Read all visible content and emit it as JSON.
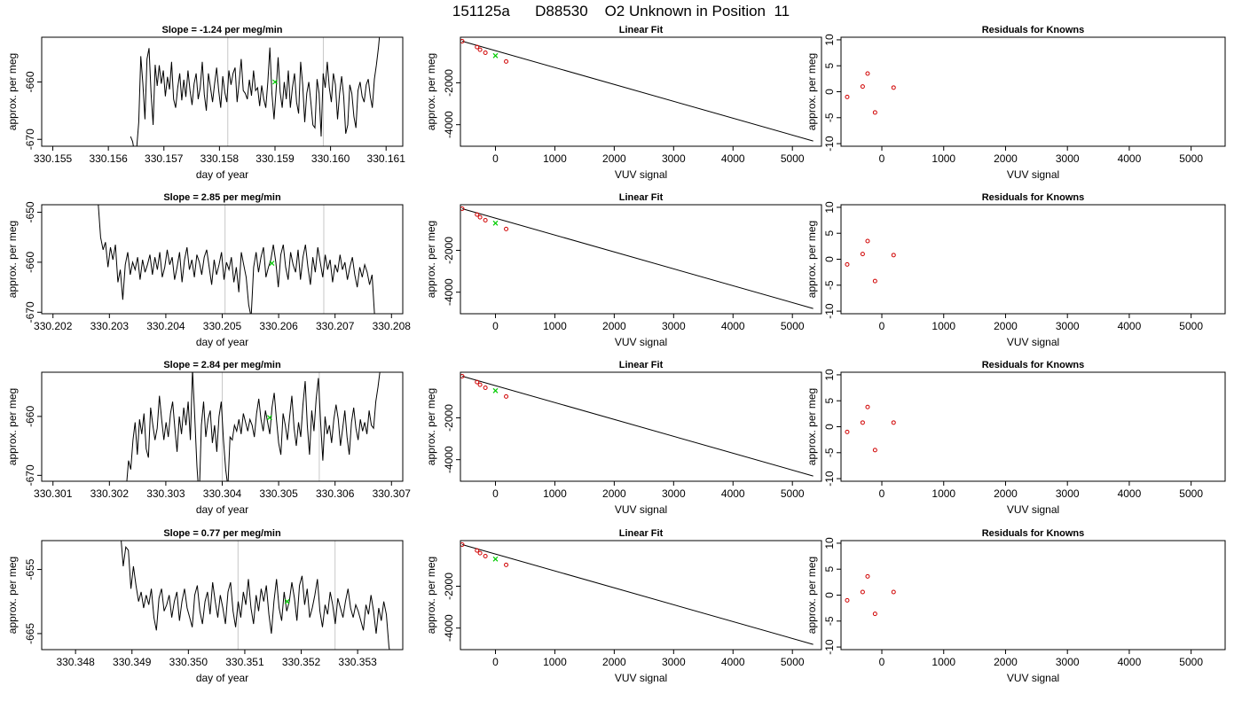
{
  "page": {
    "title": "151125a      D88530    O2 Unknown in Position  11"
  },
  "chart_data": [
    {
      "type": "line",
      "panel": "time",
      "title": "Slope =  -1.24  per meg/min",
      "xlabel": "day of year",
      "ylabel": "approx. per meg",
      "xlim": [
        330.1548,
        330.1613
      ],
      "ylim": [
        -671.2,
        -652.2
      ],
      "xticks": [
        "330.155",
        "330.156",
        "330.157",
        "330.158",
        "330.159",
        "330.160",
        "330.161"
      ],
      "yticks": [
        "-670",
        "-660"
      ],
      "vlines": [
        330.15815,
        330.15987
      ],
      "marker": {
        "x": 330.159,
        "y": -660.0,
        "color": "#00cc00"
      },
      "series_x_range": [
        330.1564,
        330.1609
      ],
      "values": [
        -669.5,
        -670.4,
        -672.5,
        -671.5,
        -667.0,
        -655.5,
        -660.2,
        -666.5,
        -656.0,
        -654.1,
        -662.0,
        -667.5,
        -657.0,
        -660.7,
        -657.1,
        -660.3,
        -658.0,
        -662.5,
        -659.1,
        -661.3,
        -656.5,
        -663.0,
        -664.5,
        -661.0,
        -658.5,
        -663.2,
        -659.6,
        -662.6,
        -658.0,
        -661.5,
        -664.0,
        -660.3,
        -658.5,
        -663.0,
        -661.0,
        -656.5,
        -662.2,
        -665.0,
        -658.5,
        -661.0,
        -663.5,
        -660.3,
        -657.5,
        -661.5,
        -664.5,
        -659.0,
        -661.8,
        -663.5,
        -658.0,
        -660.5,
        -658.5,
        -657.5,
        -663.5,
        -660.0,
        -656.0,
        -661.5,
        -662.0,
        -663.0,
        -659.6,
        -662.4,
        -658.0,
        -661.5,
        -661.0,
        -664.2,
        -660.6,
        -663.0,
        -664.5,
        -660.0,
        -654.0,
        -662.0,
        -666.5,
        -661.5,
        -655.7,
        -661.8,
        -664.5,
        -660.0,
        -663.0,
        -658.0,
        -664.5,
        -661.0,
        -658.5,
        -663.5,
        -665.5,
        -656.5,
        -660.5,
        -667.0,
        -662.0,
        -660.0,
        -663.5,
        -667.5,
        -668.0,
        -659.5,
        -662.0,
        -669.5,
        -658.5,
        -661.0,
        -656.5,
        -661.0,
        -663.5,
        -658.5,
        -660.5,
        -666.5,
        -662.0,
        -659.0,
        -662.5,
        -669.0,
        -667.5,
        -660.5,
        -662.0,
        -666.0,
        -668.0,
        -661.5,
        -660.0,
        -662.5,
        -663.5,
        -660.5,
        -659.5,
        -662.5,
        -664.5,
        -659.5,
        -657.0,
        -654.0,
        -650.0
      ],
      "grid": false
    },
    {
      "type": "scatter",
      "panel": "fit",
      "title": "Linear Fit",
      "xlabel": "VUV signal",
      "ylabel": "approx. per meg",
      "xlim": [
        -590,
        5490
      ],
      "ylim": [
        -5030,
        180
      ],
      "xticks": [
        0,
        1000,
        2000,
        3000,
        4000,
        5000
      ],
      "yticks": [
        -4000,
        -2000
      ],
      "points_x": [
        -560,
        -310,
        -260,
        -170,
        180
      ],
      "points_y": [
        -10,
        -290,
        -420,
        -560,
        -980
      ],
      "unknown_x": 0,
      "unknown_y": -700,
      "fit_line": {
        "x": [
          -560,
          5350
        ],
        "y": [
          -10,
          -4780
        ]
      },
      "grid": false
    },
    {
      "type": "scatter",
      "panel": "residuals",
      "title": "Residuals for Knowns",
      "xlabel": "VUV signal",
      "ylabel": "approx. per meg",
      "xlim": [
        -660,
        5550
      ],
      "ylim": [
        -10.5,
        10.5
      ],
      "xticks": [
        0,
        1000,
        2000,
        3000,
        4000,
        5000
      ],
      "yticks": [
        -10,
        -5,
        0,
        5,
        10
      ],
      "x": [
        -560,
        -310,
        -230,
        -110,
        190
      ],
      "y": [
        -1.0,
        1.0,
        3.5,
        -4.0,
        0.8
      ],
      "grid": false
    },
    {
      "type": "line",
      "panel": "time",
      "title": "Slope =  2.85  per meg/min",
      "xlabel": "day of year",
      "ylabel": "approx. per meg",
      "xlim": [
        330.2018,
        330.2082
      ],
      "ylim": [
        -670.3,
        -648.5
      ],
      "xticks": [
        "330.202",
        "330.203",
        "330.204",
        "330.205",
        "330.206",
        "330.207",
        "330.208"
      ],
      "yticks": [
        "-670",
        "-660",
        "-650"
      ],
      "vlines": [
        330.20505,
        330.2068
      ],
      "marker": {
        "x": 330.20588,
        "y": -660.2,
        "color": "#00cc00"
      },
      "series_x_range": [
        330.2028,
        330.2077
      ],
      "values": [
        -648.0,
        -655.0,
        -657.5,
        -656.0,
        -661.0,
        -657.0,
        -659.5,
        -656.5,
        -664.0,
        -661.5,
        -667.5,
        -660.5,
        -658.0,
        -662.5,
        -660.0,
        -661.5,
        -659.0,
        -663.5,
        -659.5,
        -662.0,
        -660.5,
        -658.5,
        -662.5,
        -659.0,
        -661.5,
        -658.0,
        -663.0,
        -661.0,
        -657.5,
        -660.5,
        -659.0,
        -663.5,
        -661.0,
        -658.0,
        -664.0,
        -659.5,
        -657.0,
        -661.5,
        -659.5,
        -663.0,
        -658.5,
        -660.0,
        -662.5,
        -659.0,
        -657.5,
        -661.0,
        -664.5,
        -659.5,
        -662.5,
        -660.5,
        -658.0,
        -663.5,
        -660.0,
        -661.5,
        -659.0,
        -664.0,
        -661.0,
        -666.0,
        -658.0,
        -660.5,
        -663.0,
        -668.5,
        -671.0,
        -661.0,
        -658.0,
        -662.0,
        -659.0,
        -657.0,
        -663.0,
        -661.0,
        -659.5,
        -656.5,
        -660.0,
        -665.0,
        -658.5,
        -656.5,
        -661.0,
        -663.5,
        -658.0,
        -660.5,
        -662.0,
        -657.5,
        -663.5,
        -659.0,
        -656.5,
        -661.0,
        -664.5,
        -659.0,
        -662.0,
        -657.0,
        -660.0,
        -663.0,
        -658.5,
        -661.5,
        -659.5,
        -664.0,
        -660.5,
        -662.0,
        -658.5,
        -661.5,
        -660.0,
        -663.5,
        -661.0,
        -659.0,
        -662.5,
        -665.0,
        -661.0,
        -663.0,
        -660.5,
        -662.0,
        -664.5,
        -662.5,
        -670.5
      ],
      "grid": false
    },
    {
      "type": "scatter",
      "panel": "fit",
      "title": "Linear Fit",
      "xlabel": "VUV signal",
      "ylabel": "approx. per meg",
      "xlim": [
        -590,
        5490
      ],
      "ylim": [
        -5030,
        180
      ],
      "xticks": [
        0,
        1000,
        2000,
        3000,
        4000,
        5000
      ],
      "yticks": [
        -4000,
        -2000
      ],
      "points_x": [
        -560,
        -310,
        -260,
        -170,
        180
      ],
      "points_y": [
        -10,
        -290,
        -420,
        -560,
        -980
      ],
      "unknown_x": 0,
      "unknown_y": -700,
      "fit_line": {
        "x": [
          -560,
          5350
        ],
        "y": [
          -10,
          -4780
        ]
      },
      "grid": false
    },
    {
      "type": "scatter",
      "panel": "residuals",
      "title": "Residuals for Knowns",
      "xlabel": "VUV signal",
      "ylabel": "approx. per meg",
      "xlim": [
        -660,
        5550
      ],
      "ylim": [
        -10.5,
        10.5
      ],
      "xticks": [
        0,
        1000,
        2000,
        3000,
        4000,
        5000
      ],
      "yticks": [
        -10,
        -5,
        0,
        5,
        10
      ],
      "x": [
        -560,
        -310,
        -230,
        -110,
        190
      ],
      "y": [
        -1.0,
        1.0,
        3.5,
        -4.2,
        0.8
      ],
      "grid": false
    },
    {
      "type": "line",
      "panel": "time",
      "title": "Slope =  2.84  per meg/min",
      "xlabel": "day of year",
      "ylabel": "approx. per meg",
      "xlim": [
        330.3008,
        330.3072
      ],
      "ylim": [
        -671.0,
        -652.5
      ],
      "xticks": [
        "330.301",
        "330.302",
        "330.303",
        "330.304",
        "330.305",
        "330.306",
        "330.307"
      ],
      "yticks": [
        "-670",
        "-660"
      ],
      "vlines": [
        330.304,
        330.30572
      ],
      "marker": {
        "x": 330.30484,
        "y": -660.2,
        "color": "#00cc00"
      },
      "series_x_range": [
        330.3023,
        330.3068
      ],
      "values": [
        -672.0,
        -667.5,
        -669.0,
        -664.0,
        -661.0,
        -666.5,
        -660.5,
        -663.0,
        -659.5,
        -665.5,
        -667.0,
        -658.5,
        -661.5,
        -664.0,
        -662.0,
        -656.5,
        -660.5,
        -664.0,
        -661.0,
        -663.5,
        -659.5,
        -657.5,
        -662.0,
        -666.0,
        -660.0,
        -663.0,
        -658.5,
        -661.5,
        -657.5,
        -664.0,
        -652.0,
        -660.0,
        -668.5,
        -674.0,
        -661.5,
        -657.5,
        -663.5,
        -660.5,
        -659.0,
        -664.5,
        -661.5,
        -666.0,
        -660.0,
        -657.5,
        -664.0,
        -669.0,
        -672.0,
        -663.5,
        -664.0,
        -661.5,
        -662.5,
        -660.5,
        -663.0,
        -659.5,
        -661.0,
        -662.5,
        -660.5,
        -661.5,
        -663.5,
        -659.5,
        -657.0,
        -660.5,
        -662.5,
        -659.0,
        -661.0,
        -663.0,
        -658.5,
        -656.0,
        -660.5,
        -664.5,
        -666.5,
        -659.5,
        -661.5,
        -664.0,
        -660.0,
        -656.5,
        -662.0,
        -665.0,
        -661.0,
        -663.5,
        -658.0,
        -654.0,
        -661.5,
        -666.5,
        -659.0,
        -662.5,
        -657.0,
        -653.5,
        -661.0,
        -667.5,
        -660.0,
        -663.0,
        -661.5,
        -664.5,
        -660.5,
        -658.0,
        -660.5,
        -665.0,
        -662.0,
        -659.0,
        -663.5,
        -666.5,
        -661.0,
        -658.5,
        -662.0,
        -664.0,
        -660.5,
        -662.5,
        -661.0,
        -663.0,
        -659.0,
        -661.5,
        -662.0,
        -657.5,
        -655.0,
        -652.0
      ],
      "grid": false
    },
    {
      "type": "scatter",
      "panel": "fit",
      "title": "Linear Fit",
      "xlabel": "VUV signal",
      "ylabel": "approx. per meg",
      "xlim": [
        -590,
        5490
      ],
      "ylim": [
        -5030,
        180
      ],
      "xticks": [
        0,
        1000,
        2000,
        3000,
        4000,
        5000
      ],
      "yticks": [
        -4000,
        -2000
      ],
      "points_x": [
        -560,
        -310,
        -260,
        -170,
        180
      ],
      "points_y": [
        -10,
        -290,
        -420,
        -560,
        -980
      ],
      "unknown_x": 0,
      "unknown_y": -700,
      "fit_line": {
        "x": [
          -560,
          5350
        ],
        "y": [
          -10,
          -4780
        ]
      },
      "grid": false
    },
    {
      "type": "scatter",
      "panel": "residuals",
      "title": "Residuals for Knowns",
      "xlabel": "VUV signal",
      "ylabel": "approx. per meg",
      "xlim": [
        -660,
        5550
      ],
      "ylim": [
        -10.5,
        10.5
      ],
      "xticks": [
        0,
        1000,
        2000,
        3000,
        4000,
        5000
      ],
      "yticks": [
        -10,
        -5,
        0,
        5,
        10
      ],
      "x": [
        -560,
        -310,
        -230,
        -110,
        190
      ],
      "y": [
        -1.0,
        0.8,
        3.8,
        -4.5,
        0.8
      ],
      "grid": false
    },
    {
      "type": "line",
      "panel": "time",
      "title": "Slope =  0.77  per meg/min",
      "xlabel": "day of year",
      "ylabel": "approx. per meg",
      "xlim": [
        330.3474,
        330.3538
      ],
      "ylim": [
        -667.5,
        -650.5
      ],
      "xticks": [
        "330.348",
        "330.349",
        "330.350",
        "330.351",
        "330.352",
        "330.353"
      ],
      "yticks": [
        "-665",
        "-655"
      ],
      "vlines": [
        330.35088,
        330.3526
      ],
      "marker": {
        "x": 330.35175,
        "y": -660.0,
        "color": "#00cc00"
      },
      "series_x_range": [
        330.3488,
        330.3536
      ],
      "values": [
        -649.5,
        -654.5,
        -651.5,
        -652.0,
        -658.0,
        -654.5,
        -657.5,
        -660.0,
        -658.5,
        -661.0,
        -659.0,
        -660.5,
        -658.0,
        -662.5,
        -664.5,
        -659.5,
        -658.0,
        -661.5,
        -660.5,
        -659.0,
        -662.5,
        -660.0,
        -658.5,
        -663.0,
        -660.0,
        -658.0,
        -661.0,
        -662.5,
        -664.0,
        -659.0,
        -657.5,
        -661.5,
        -663.5,
        -660.0,
        -658.5,
        -662.0,
        -657.0,
        -660.0,
        -662.5,
        -659.0,
        -661.0,
        -663.5,
        -658.5,
        -657.0,
        -661.5,
        -664.0,
        -660.0,
        -662.5,
        -658.5,
        -660.5,
        -656.5,
        -661.0,
        -663.5,
        -659.0,
        -661.5,
        -658.0,
        -660.0,
        -657.5,
        -662.0,
        -665.0,
        -660.0,
        -656.5,
        -661.0,
        -663.0,
        -658.5,
        -661.5,
        -660.0,
        -657.0,
        -659.5,
        -663.0,
        -657.5,
        -656.0,
        -660.5,
        -658.0,
        -662.5,
        -661.0,
        -659.0,
        -656.5,
        -661.5,
        -664.0,
        -660.5,
        -662.0,
        -658.5,
        -660.5,
        -663.5,
        -659.5,
        -661.0,
        -662.5,
        -660.0,
        -658.0,
        -661.0,
        -662.5,
        -660.5,
        -661.5,
        -663.0,
        -664.5,
        -660.5,
        -662.0,
        -659.0,
        -661.5,
        -665.0,
        -661.0,
        -663.0,
        -660.0,
        -662.0,
        -667.0,
        -669.5
      ],
      "grid": false
    },
    {
      "type": "scatter",
      "panel": "fit",
      "title": "Linear Fit",
      "xlabel": "VUV signal",
      "ylabel": "approx. per meg",
      "xlim": [
        -590,
        5490
      ],
      "ylim": [
        -5030,
        180
      ],
      "xticks": [
        0,
        1000,
        2000,
        3000,
        4000,
        5000
      ],
      "yticks": [
        -4000,
        -2000
      ],
      "points_x": [
        -560,
        -310,
        -260,
        -170,
        180
      ],
      "points_y": [
        -10,
        -290,
        -420,
        -560,
        -980
      ],
      "unknown_x": 0,
      "unknown_y": -700,
      "fit_line": {
        "x": [
          -560,
          5350
        ],
        "y": [
          -10,
          -4780
        ]
      },
      "grid": false
    },
    {
      "type": "scatter",
      "panel": "residuals",
      "title": "Residuals for Knowns",
      "xlabel": "VUV signal",
      "ylabel": "approx. per meg",
      "xlim": [
        -660,
        5550
      ],
      "ylim": [
        -10.5,
        10.5
      ],
      "xticks": [
        0,
        1000,
        2000,
        3000,
        4000,
        5000
      ],
      "yticks": [
        -10,
        -5,
        0,
        5,
        10
      ],
      "x": [
        -560,
        -310,
        -230,
        -110,
        190
      ],
      "y": [
        -1.0,
        0.6,
        3.6,
        -3.6,
        0.6
      ],
      "grid": false
    }
  ]
}
